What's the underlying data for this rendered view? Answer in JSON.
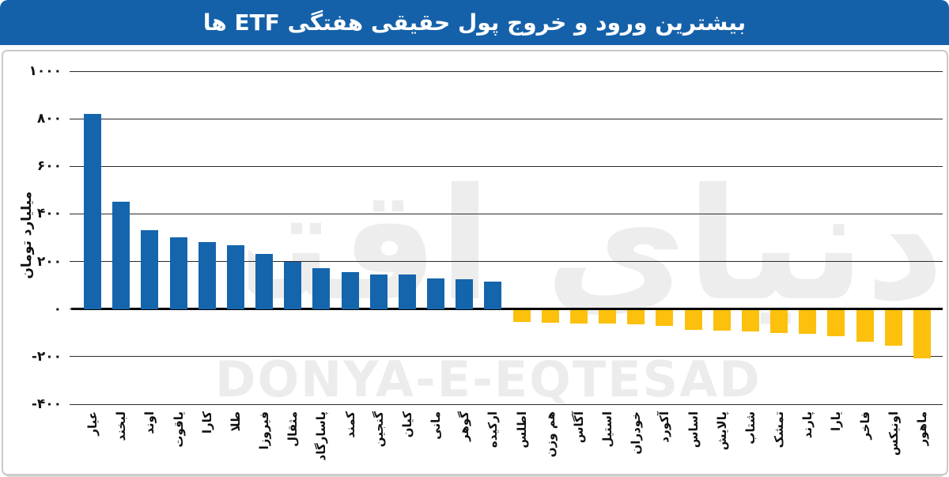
{
  "header": {
    "bg_color": "#1561A9",
    "title_color": "#FFFFFF"
  },
  "watermarks": {
    "persian": "دنیای اقتصاد",
    "latin": "DONYA-E-EQTESAD",
    "color": "#ECECEC"
  },
  "chart_data": {
    "type": "bar",
    "title": "بیشترین ورود و خروج پول حقیقی هفتگی ETF ها",
    "xlabel": "",
    "ylabel": "میلیارد تومان",
    "ylim": [
      -400,
      1000
    ],
    "grid": true,
    "legend": "none",
    "yticks": [
      {
        "label": "۱۰۰۰",
        "value": 1000
      },
      {
        "label": "۸۰۰",
        "value": 800
      },
      {
        "label": "۶۰۰",
        "value": 600
      },
      {
        "label": "۴۰۰",
        "value": 400
      },
      {
        "label": "۲۰۰",
        "value": 200
      },
      {
        "label": "۰",
        "value": 0
      },
      {
        "label": "-۲۰۰",
        "value": -200
      },
      {
        "label": "-۴۰۰",
        "value": -400
      }
    ],
    "categories": [
      "عیار",
      "لبخند",
      "اوند",
      "یاقوت",
      "کارا",
      "طلا",
      "فیروزا",
      "مثقال",
      "پاسارگاد",
      "کمند",
      "گنجین",
      "کیان",
      "مانی",
      "گوهر",
      "ارکیده",
      "اطلس",
      "هم وزن",
      "آگاس",
      "استیل",
      "خودران",
      "آکورد",
      "اساس",
      "پالایش",
      "شتاب",
      "تمشک",
      "پارند",
      "یارا",
      "فاخر",
      "اونیکس",
      "ماهور"
    ],
    "values": [
      820,
      452,
      330,
      301,
      281,
      268,
      231,
      198,
      171,
      157,
      147,
      146,
      128,
      124,
      114,
      -50,
      -52,
      -56,
      -57,
      -60,
      -65,
      -84,
      -85,
      -88,
      -97,
      -100,
      -110,
      -131,
      -148,
      -202
    ],
    "colors": {
      "positive": "#1565AD",
      "negative": "#FCC00D",
      "gridline": "#2B2B2B",
      "zero_line": "#000000"
    }
  }
}
